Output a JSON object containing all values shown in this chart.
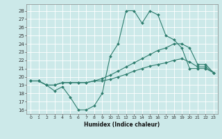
{
  "xlabel": "Humidex (Indice chaleur)",
  "bg_color": "#cce9e9",
  "grid_color": "#ffffff",
  "line_color": "#2e7d6e",
  "x_ticks": [
    0,
    1,
    2,
    3,
    4,
    5,
    6,
    7,
    8,
    9,
    10,
    11,
    12,
    13,
    14,
    15,
    16,
    17,
    18,
    19,
    20,
    21,
    22,
    23
  ],
  "y_ticks": [
    16,
    17,
    18,
    19,
    20,
    21,
    22,
    23,
    24,
    25,
    26,
    27,
    28
  ],
  "series_max": [
    19.5,
    19.5,
    19.0,
    18.3,
    18.8,
    17.5,
    16.0,
    16.0,
    16.5,
    18.0,
    22.5,
    24.0,
    28.0,
    28.0,
    26.5,
    28.0,
    27.5,
    25.0,
    24.5,
    23.5,
    21.0,
    21.0,
    21.0,
    20.5
  ],
  "series_avg": [
    19.5,
    19.5,
    19.0,
    19.0,
    19.3,
    19.3,
    19.3,
    19.3,
    19.5,
    19.8,
    20.2,
    20.7,
    21.2,
    21.7,
    22.2,
    22.7,
    23.2,
    23.5,
    24.0,
    24.0,
    23.5,
    21.5,
    21.5,
    20.5
  ],
  "series_min": [
    19.5,
    19.5,
    19.0,
    19.0,
    19.3,
    19.3,
    19.3,
    19.3,
    19.5,
    19.5,
    19.7,
    20.0,
    20.3,
    20.7,
    21.0,
    21.3,
    21.5,
    21.7,
    22.0,
    22.2,
    21.8,
    21.2,
    21.2,
    20.5
  ]
}
